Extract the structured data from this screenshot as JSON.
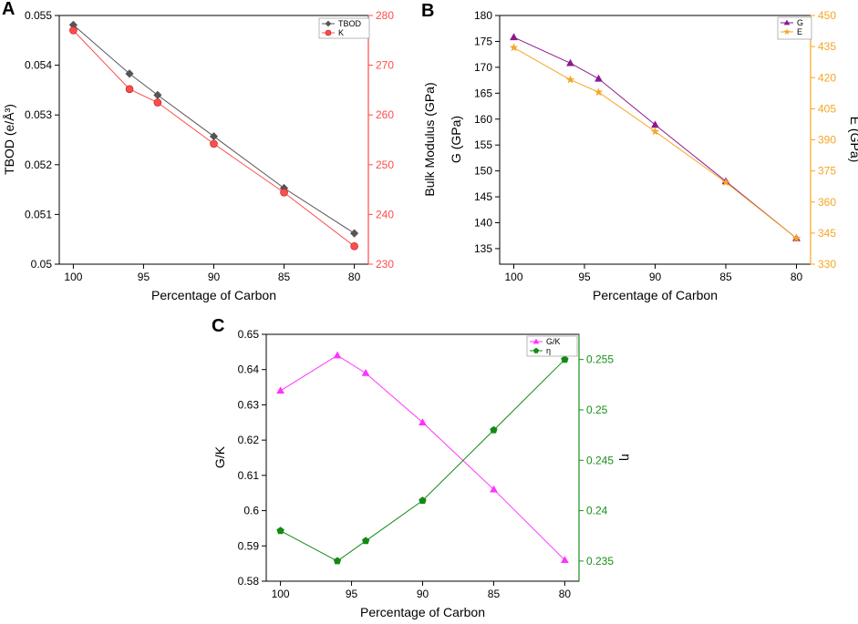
{
  "chart_data": [
    {
      "panel": "A",
      "type": "line",
      "xlabel": "Percentage of Carbon",
      "x": [
        100,
        96,
        94,
        90,
        85,
        80
      ],
      "x_ticks": [
        "100",
        "95",
        "90",
        "85",
        "80"
      ],
      "x_range": [
        101,
        79
      ],
      "left_axis": {
        "label": "TBOD (e/Å³)",
        "range": [
          0.05,
          0.055
        ],
        "ticks": [
          "0.05",
          "0.051",
          "0.052",
          "0.053",
          "0.054",
          "0.055"
        ],
        "color": "#000000"
      },
      "right_axis": {
        "label": "",
        "range": [
          230,
          280
        ],
        "ticks": [
          "230",
          "240",
          "250",
          "260",
          "270",
          "280"
        ],
        "color": "#ff4b4b"
      },
      "series": [
        {
          "name": "TBOD",
          "axis": "left",
          "marker": "diamond",
          "color": "#555555",
          "values": [
            0.05481,
            0.05383,
            0.0534,
            0.05257,
            0.05153,
            0.05062
          ]
        },
        {
          "name": "K",
          "axis": "right",
          "marker": "circle",
          "color": "#ff4b4b",
          "values": [
            277,
            265.2,
            262.5,
            254.2,
            244.4,
            233.6
          ]
        }
      ],
      "legend": "top-right"
    },
    {
      "panel": "B",
      "type": "line",
      "xlabel": "Percentage of Carbon",
      "x": [
        100,
        96,
        94,
        90,
        85,
        80
      ],
      "x_ticks": [
        "100",
        "95",
        "90",
        "85",
        "80"
      ],
      "x_range": [
        101,
        79
      ],
      "extra_ylabel": "Bulk Modulus (GPa)",
      "left_axis": {
        "label": "G (GPa)",
        "range": [
          132,
          180
        ],
        "ticks": [
          "135",
          "140",
          "145",
          "150",
          "155",
          "160",
          "165",
          "170",
          "175",
          "180"
        ],
        "color": "#000000"
      },
      "right_axis": {
        "label": "E (GPa)",
        "range": [
          330,
          450
        ],
        "ticks": [
          "330",
          "345",
          "360",
          "375",
          "390",
          "405",
          "420",
          "435",
          "450"
        ],
        "color": "#f5a623"
      },
      "series": [
        {
          "name": "G",
          "axis": "left",
          "marker": "triangle",
          "color": "#8b1a8b",
          "values": [
            175.8,
            170.8,
            167.8,
            158.9,
            148,
            137
          ]
        },
        {
          "name": "E",
          "axis": "right",
          "marker": "star",
          "color": "#f5a623",
          "values": [
            434.5,
            419,
            413,
            394,
            369.5,
            342.5
          ]
        }
      ],
      "legend": "top-right"
    },
    {
      "panel": "C",
      "type": "line",
      "xlabel": "Percentage of Carbon",
      "x": [
        100,
        96,
        94,
        90,
        85,
        80
      ],
      "x_ticks": [
        "100",
        "95",
        "90",
        "85",
        "80"
      ],
      "x_range": [
        101,
        79
      ],
      "left_axis": {
        "label": "G/K",
        "range": [
          0.58,
          0.65
        ],
        "ticks": [
          "0.58",
          "0.59",
          "0.6",
          "0.61",
          "0.62",
          "0.63",
          "0.64",
          "0.65"
        ],
        "color": "#000000"
      },
      "right_axis": {
        "label": "η",
        "range": [
          0.233,
          0.2575
        ],
        "ticks": [
          "0.235",
          "0.24",
          "0.245",
          "0.25",
          "0.255"
        ],
        "color": "#1a8f1a"
      },
      "series": [
        {
          "name": "G/K",
          "axis": "left",
          "marker": "triangle",
          "color": "#ff33ff",
          "values": [
            0.634,
            0.644,
            0.639,
            0.625,
            0.606,
            0.586
          ]
        },
        {
          "name": "η",
          "axis": "right",
          "marker": "pentagon",
          "color": "#138a13",
          "values": [
            0.238,
            0.235,
            0.237,
            0.241,
            0.248,
            0.255
          ]
        }
      ],
      "legend": "top-right"
    }
  ]
}
